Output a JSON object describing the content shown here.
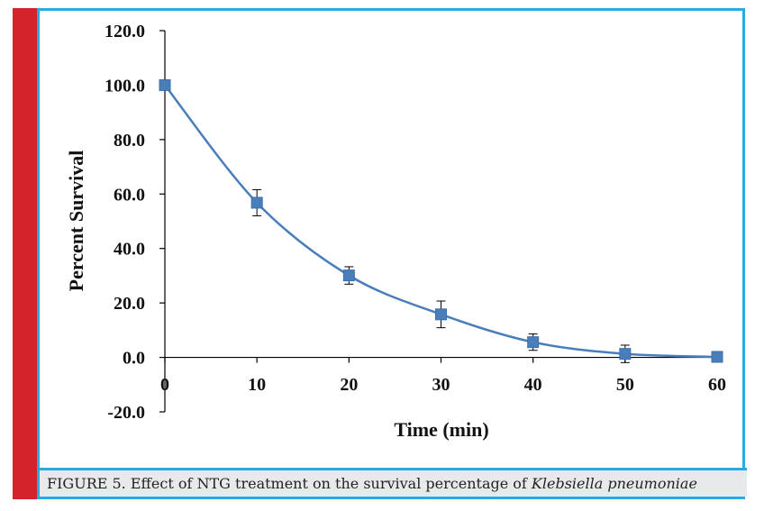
{
  "chart_data": {
    "type": "line",
    "xlabel": "Time (min)",
    "ylabel": "Percent Survival",
    "x": [
      0,
      10,
      20,
      30,
      40,
      50,
      60
    ],
    "x_tick_labels": [
      "0",
      "10",
      "20",
      "30",
      "40",
      "50",
      "60"
    ],
    "y_tick_labels": [
      "120.0",
      "100.0",
      "80.0",
      "60.0",
      "40.0",
      "20.0",
      "0.0",
      "-20.0"
    ],
    "ylim": [
      -20,
      120
    ],
    "xlim": [
      0,
      60
    ],
    "series": [
      {
        "values": [
          100.0,
          56.8,
          30.1,
          15.8,
          5.6,
          1.3,
          0.2
        ],
        "error": [
          0,
          4.8,
          3.2,
          4.9,
          3.0,
          3.2,
          0
        ],
        "color": "#4a7ebb",
        "marker": "square"
      }
    ],
    "grid": false,
    "legend": "none"
  },
  "caption": {
    "prefix": "FIGURE 5. Effect of NTG treatment on the survival percentage of ",
    "species": "Klebsiella pneumoniae"
  }
}
